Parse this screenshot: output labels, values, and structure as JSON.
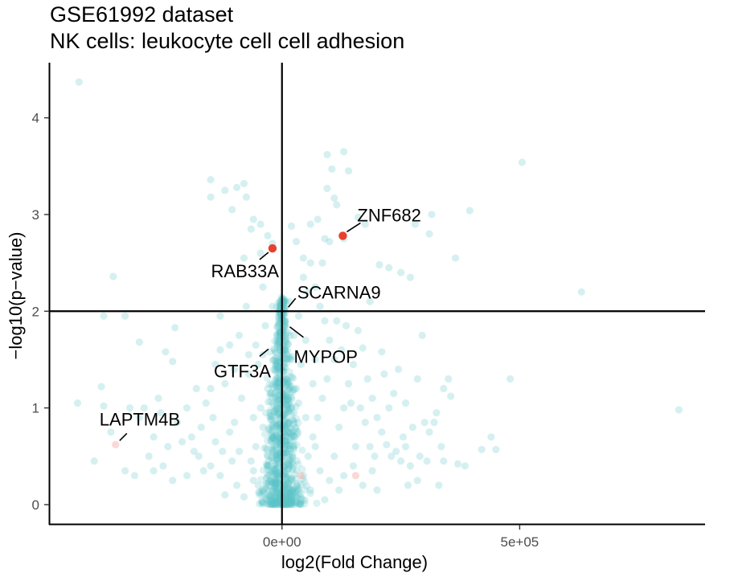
{
  "chart_data": {
    "type": "scatter",
    "title": [
      "GSE61992 dataset",
      "NK cells: leukocyte cell cell adhesion"
    ],
    "xlabel": "log2(Fold Change)",
    "ylabel": "−log10(p−value)",
    "xlim": [
      -490000,
      890000
    ],
    "ylim": [
      -0.2,
      4.57
    ],
    "x_ticks": [
      {
        "value": 0,
        "label": "0e+00"
      },
      {
        "value": 500000,
        "label": "5e+05"
      }
    ],
    "y_ticks": [
      {
        "value": 0,
        "label": "0"
      },
      {
        "value": 1,
        "label": "1"
      },
      {
        "value": 2,
        "label": "2"
      },
      {
        "value": 3,
        "label": "3"
      },
      {
        "value": 4,
        "label": "4"
      }
    ],
    "reference_lines": {
      "vertical_x": 0,
      "horizontal_y": 2
    },
    "grid": false,
    "colors": {
      "background_points": "#5bc2c7",
      "highlighted": "#e8412e",
      "faded_highlight": "#f4b4ae",
      "lines": "#000000"
    },
    "background_points": [
      [
        -427000,
        4.37
      ],
      [
        -150000,
        3.36
      ],
      [
        -80000,
        3.32
      ],
      [
        -120000,
        3.25
      ],
      [
        -150000,
        3.18
      ],
      [
        -95000,
        3.28
      ],
      [
        -75000,
        3.18
      ],
      [
        -105000,
        3.05
      ],
      [
        -60000,
        2.95
      ],
      [
        -45000,
        2.9
      ],
      [
        -65000,
        2.85
      ],
      [
        -30000,
        2.78
      ],
      [
        -45000,
        2.6
      ],
      [
        -80000,
        2.55
      ],
      [
        -20000,
        2.7
      ],
      [
        20000,
        2.88
      ],
      [
        30000,
        2.72
      ],
      [
        45000,
        2.55
      ],
      [
        60000,
        2.9
      ],
      [
        75000,
        2.95
      ],
      [
        90000,
        2.75
      ],
      [
        100000,
        2.72
      ],
      [
        85000,
        2.5
      ],
      [
        60000,
        2.5
      ],
      [
        95000,
        3.62
      ],
      [
        130000,
        3.65
      ],
      [
        105000,
        3.47
      ],
      [
        140000,
        3.45
      ],
      [
        95000,
        3.27
      ],
      [
        110000,
        3.17
      ],
      [
        115000,
        3.1
      ],
      [
        160000,
        2.97
      ],
      [
        175000,
        2.9
      ],
      [
        130000,
        2.75
      ],
      [
        205000,
        2.48
      ],
      [
        225000,
        2.45
      ],
      [
        250000,
        2.4
      ],
      [
        270000,
        2.35
      ],
      [
        185000,
        2.1
      ],
      [
        315000,
        3.0
      ],
      [
        280000,
        2.9
      ],
      [
        310000,
        2.8
      ],
      [
        365000,
        2.55
      ],
      [
        395000,
        3.04
      ],
      [
        505000,
        3.54
      ],
      [
        630000,
        2.2
      ],
      [
        -355000,
        2.36
      ],
      [
        -375000,
        1.95
      ],
      [
        -330000,
        1.95
      ],
      [
        -225000,
        1.83
      ],
      [
        -300000,
        1.68
      ],
      [
        -130000,
        1.6
      ],
      [
        -245000,
        1.58
      ],
      [
        -230000,
        1.48
      ],
      [
        -140000,
        1.45
      ],
      [
        -380000,
        1.22
      ],
      [
        -430000,
        1.05
      ],
      [
        -375000,
        1.02
      ],
      [
        -320000,
        1.0
      ],
      [
        -290000,
        1.0
      ],
      [
        -255000,
        0.95
      ],
      [
        -300000,
        0.9
      ],
      [
        -360000,
        0.75
      ],
      [
        -395000,
        0.45
      ],
      [
        -330000,
        0.35
      ],
      [
        -310000,
        0.3
      ],
      [
        -270000,
        0.7
      ],
      [
        -210000,
        0.65
      ],
      [
        -185000,
        0.55
      ],
      [
        -150000,
        0.4
      ],
      [
        -130000,
        0.3
      ],
      [
        -120000,
        0.1
      ],
      [
        -80000,
        0.08
      ],
      [
        -60000,
        0.25
      ],
      [
        -90000,
        0.55
      ],
      [
        -100000,
        0.85
      ],
      [
        -85000,
        1.1
      ],
      [
        -70000,
        1.35
      ],
      [
        -55000,
        1.65
      ],
      [
        -90000,
        1.75
      ],
      [
        -75000,
        2.05
      ],
      [
        -40000,
        2.25
      ],
      [
        -50000,
        1.45
      ],
      [
        -30000,
        1.2
      ],
      [
        -25000,
        0.95
      ],
      [
        -20000,
        0.7
      ],
      [
        -15000,
        0.4
      ],
      [
        -10000,
        0.15
      ],
      [
        -5000,
        0.05
      ],
      [
        -30000,
        0.5
      ],
      [
        -40000,
        0.8
      ],
      [
        -45000,
        1.0
      ],
      [
        -55000,
        0.6
      ],
      [
        -60000,
        0.35
      ],
      [
        5000,
        0.05
      ],
      [
        10000,
        0.2
      ],
      [
        15000,
        0.45
      ],
      [
        20000,
        0.7
      ],
      [
        25000,
        0.95
      ],
      [
        30000,
        1.2
      ],
      [
        40000,
        1.45
      ],
      [
        50000,
        1.7
      ],
      [
        35000,
        1.95
      ],
      [
        55000,
        2.2
      ],
      [
        45000,
        2.35
      ],
      [
        70000,
        2.25
      ],
      [
        80000,
        2.05
      ],
      [
        90000,
        1.9
      ],
      [
        100000,
        1.7
      ],
      [
        110000,
        1.5
      ],
      [
        95000,
        1.3
      ],
      [
        85000,
        1.1
      ],
      [
        75000,
        0.9
      ],
      [
        65000,
        0.7
      ],
      [
        55000,
        0.5
      ],
      [
        45000,
        0.3
      ],
      [
        60000,
        0.15
      ],
      [
        90000,
        0.05
      ],
      [
        100000,
        0.25
      ],
      [
        110000,
        0.5
      ],
      [
        120000,
        0.8
      ],
      [
        130000,
        1.0
      ],
      [
        140000,
        1.25
      ],
      [
        150000,
        1.45
      ],
      [
        160000,
        1.8
      ],
      [
        170000,
        1.62
      ],
      [
        180000,
        1.3
      ],
      [
        190000,
        1.1
      ],
      [
        200000,
        0.9
      ],
      [
        210000,
        0.75
      ],
      [
        220000,
        0.62
      ],
      [
        230000,
        0.5
      ],
      [
        240000,
        0.55
      ],
      [
        250000,
        0.45
      ],
      [
        260000,
        0.6
      ],
      [
        270000,
        0.4
      ],
      [
        290000,
        0.5
      ],
      [
        310000,
        0.75
      ],
      [
        320000,
        0.85
      ],
      [
        325000,
        0.95
      ],
      [
        355000,
        1.12
      ],
      [
        335000,
        0.6
      ],
      [
        340000,
        0.45
      ],
      [
        370000,
        0.42
      ],
      [
        385000,
        0.4
      ],
      [
        420000,
        0.57
      ],
      [
        450000,
        0.57
      ],
      [
        480000,
        1.3
      ],
      [
        440000,
        0.7
      ],
      [
        285000,
        0.25
      ],
      [
        210000,
        1.58
      ],
      [
        215000,
        1.35
      ],
      [
        245000,
        1.4
      ],
      [
        260000,
        1.05
      ],
      [
        285000,
        1.3
      ],
      [
        295000,
        1.75
      ],
      [
        350000,
        1.3
      ],
      [
        340000,
        1.2
      ],
      [
        300000,
        0.85
      ],
      [
        330000,
        0.2
      ],
      [
        835000,
        0.98
      ],
      [
        150000,
        0.4
      ],
      [
        170000,
        0.2
      ],
      [
        190000,
        0.35
      ],
      [
        200000,
        0.15
      ],
      [
        120000,
        0.15
      ],
      [
        130000,
        0.3
      ],
      [
        -110000,
        0.75
      ],
      [
        -140000,
        0.65
      ],
      [
        -170000,
        0.8
      ],
      [
        -200000,
        0.3
      ],
      [
        -230000,
        0.25
      ],
      [
        -250000,
        0.4
      ],
      [
        -200000,
        1.0
      ],
      [
        -180000,
        1.2
      ],
      [
        -160000,
        1.05
      ],
      [
        -120000,
        1.25
      ],
      [
        -100000,
        1.4
      ],
      [
        -110000,
        1.65
      ],
      [
        -130000,
        1.95
      ],
      [
        -150000,
        1.2
      ],
      [
        -260000,
        1.1
      ],
      [
        -280000,
        0.5
      ],
      [
        -220000,
        0.85
      ],
      [
        -60000,
        0.9
      ],
      [
        -70000,
        1.55
      ],
      [
        -40000,
        1.55
      ],
      [
        -35000,
        1.85
      ],
      [
        -20000,
        2.05
      ],
      [
        -15000,
        1.5
      ],
      [
        20000,
        1.5
      ],
      [
        25000,
        1.75
      ],
      [
        15000,
        2.1
      ],
      [
        10000,
        1.3
      ],
      [
        35000,
        1.05
      ],
      [
        65000,
        1.25
      ],
      [
        70000,
        1.5
      ],
      [
        115000,
        1.9
      ],
      [
        125000,
        1.6
      ],
      [
        135000,
        1.85
      ],
      [
        145000,
        1.05
      ],
      [
        155000,
        0.6
      ],
      [
        165000,
        1.0
      ],
      [
        175000,
        0.85
      ],
      [
        185000,
        0.6
      ],
      [
        195000,
        0.5
      ],
      [
        225000,
        1.0
      ],
      [
        235000,
        1.15
      ],
      [
        255000,
        0.7
      ],
      [
        265000,
        0.2
      ],
      [
        275000,
        0.8
      ],
      [
        305000,
        0.45
      ],
      [
        80000,
        0.35
      ],
      [
        70000,
        0.6
      ],
      [
        50000,
        0.9
      ],
      [
        -50000,
        0.2
      ],
      [
        -65000,
        0.45
      ],
      [
        -95000,
        0.2
      ],
      [
        -105000,
        0.45
      ],
      [
        -125000,
        0.55
      ],
      [
        -145000,
        0.9
      ],
      [
        -165000,
        0.35
      ],
      [
        -175000,
        0.5
      ],
      [
        -190000,
        0.7
      ],
      [
        -240000,
        0.6
      ],
      [
        -270000,
        0.35
      ]
    ],
    "faded_points": [
      [
        -350000,
        0.62
      ],
      [
        155000,
        0.3
      ],
      [
        40000,
        0.3
      ]
    ],
    "labeled_points": [
      {
        "label": "ZNF682",
        "x": 128000,
        "y": 2.78,
        "highlighted": true
      },
      {
        "label": "RAB33A",
        "x": -20000,
        "y": 2.65,
        "highlighted": true
      },
      {
        "label": "SCARNA9",
        "x": 5000,
        "y": 2.0,
        "highlighted": false
      },
      {
        "label": "MYPOP",
        "x": 8000,
        "y": 1.88,
        "highlighted": false
      },
      {
        "label": "GTF3A",
        "x": -20000,
        "y": 1.65,
        "highlighted": false
      },
      {
        "label": "LAPTM4B",
        "x": -350000,
        "y": 0.62,
        "highlighted": false
      }
    ]
  }
}
